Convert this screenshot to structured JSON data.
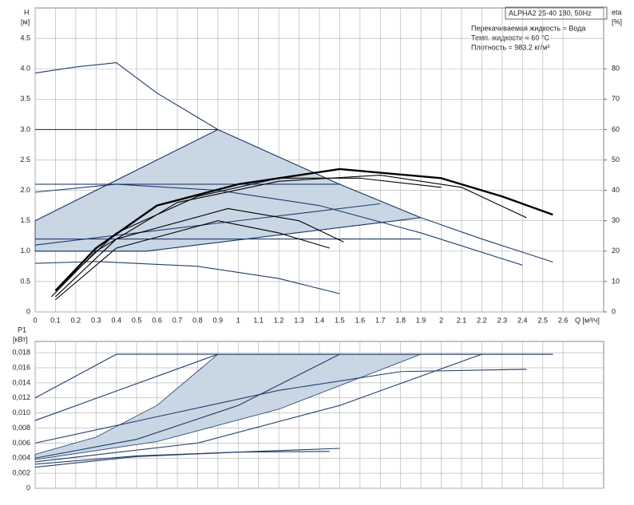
{
  "chart_data": [
    {
      "type": "line",
      "ylabel": "H",
      "yunit": "[м]",
      "y2label": "eta",
      "y2unit": "[%]",
      "xlabel": "Q [м³/ч]",
      "box_title": "ALPHA2 25-40 180, 50Hz",
      "annotations": [
        "Перекачиваемая жидкость = Вода",
        "Темп. жидкости = 60 °C",
        "Плотность = 983.2 кг/м³"
      ],
      "xlim": [
        0,
        2.8
      ],
      "xticks": [
        0,
        0.1,
        0.2,
        0.3,
        0.4,
        0.5,
        0.6,
        0.7,
        0.8,
        0.9,
        1,
        1.1,
        1.2,
        1.3,
        1.4,
        1.5,
        1.6,
        1.7,
        1.8,
        1.9,
        2,
        2.1,
        2.2,
        2.3,
        2.4,
        2.5,
        2.6
      ],
      "ylim": [
        0,
        5
      ],
      "yticks": [
        0,
        0.5,
        {
          "value": 1,
          "label": "1.0"
        },
        1.5,
        {
          "value": 2,
          "label": "2.0"
        },
        2.5,
        {
          "value": 3,
          "label": "3.0"
        },
        3.5,
        {
          "value": 4,
          "label": "4.0"
        },
        4.5
      ],
      "y2lim": [
        0,
        100
      ],
      "y2ticks": [
        0,
        10,
        20,
        30,
        40,
        50,
        60,
        70,
        80
      ],
      "grid": true,
      "series": [
        {
          "fill": "#c9d6e4",
          "color": "#1f3d6b",
          "x": [
            0,
            0,
            0.9,
            1.5,
            1.9,
            0.55
          ],
          "values": [
            1.0,
            1.5,
            3.0,
            2.1,
            1.55,
            1.0
          ]
        },
        {
          "color": "#1f3d6b",
          "x": [
            0,
            0.2,
            0.4,
            0.6,
            0.9,
            1.2,
            1.5,
            1.9,
            2.2,
            2.55
          ],
          "values": [
            3.93,
            4.03,
            4.1,
            3.6,
            3.0,
            2.55,
            2.1,
            1.55,
            1.2,
            0.82
          ]
        },
        {
          "color": "#1f3d6b",
          "x": [
            0,
            0.9
          ],
          "values": [
            1.5,
            3.0
          ]
        },
        {
          "color": "#1f3d6b",
          "x": [
            0,
            0.9
          ],
          "values": [
            3.0,
            3.0
          ]
        },
        {
          "color": "#1f3d6b",
          "x": [
            0,
            1.5
          ],
          "values": [
            2.1,
            2.1
          ]
        },
        {
          "color": "#1f3d6b",
          "x": [
            0,
            1.9
          ],
          "values": [
            1.2,
            1.2
          ]
        },
        {
          "color": "#1f3d6b",
          "x": [
            0,
            1.7
          ],
          "values": [
            1.1,
            1.78
          ]
        },
        {
          "color": "#1f3d6b",
          "x": [
            0,
            0.55,
            1.9
          ],
          "values": [
            1.0,
            1.0,
            1.55
          ]
        },
        {
          "color": "#1f3d6b",
          "x": [
            0,
            0.4,
            0.9,
            1.4,
            1.9,
            2.4
          ],
          "values": [
            1.97,
            2.1,
            2.0,
            1.75,
            1.3,
            0.77
          ]
        },
        {
          "color": "#1f3d6b",
          "x": [
            0,
            0.3,
            0.8,
            1.2,
            1.5
          ],
          "values": [
            0.8,
            0.83,
            0.75,
            0.55,
            0.3
          ]
        },
        {
          "color": "#000000",
          "style": "bold",
          "axis": "y2",
          "x": [
            0.1,
            0.3,
            0.6,
            1.0,
            1.5,
            2.0,
            2.3,
            2.55
          ],
          "values": [
            7,
            21,
            35,
            42,
            47,
            44,
            38,
            32
          ]
        },
        {
          "color": "#000000",
          "axis": "y2",
          "x": [
            0.08,
            0.3,
            0.7,
            1.2,
            1.7,
            2.1,
            2.42
          ],
          "values": [
            5,
            20,
            36,
            43,
            45,
            41,
            31
          ]
        },
        {
          "color": "#000000",
          "axis": "y2",
          "x": [
            0.1,
            0.4,
            0.8,
            1.2,
            1.6,
            2.0
          ],
          "values": [
            7,
            26,
            38,
            44,
            44,
            41
          ]
        },
        {
          "color": "#000000",
          "axis": "y2",
          "x": [
            0.1,
            0.4,
            0.95,
            1.3,
            1.52
          ],
          "values": [
            5,
            24,
            34,
            30,
            23
          ]
        },
        {
          "color": "#000000",
          "axis": "y2",
          "x": [
            0.1,
            0.4,
            0.9,
            1.2,
            1.45
          ],
          "values": [
            4,
            21,
            30,
            26,
            21
          ]
        }
      ]
    },
    {
      "type": "line",
      "ylabel": "P1",
      "yunit": "[кВт]",
      "ylim": [
        0,
        0.0195
      ],
      "yticks": [
        0,
        {
          "value": 0.002,
          "label": "0,002"
        },
        {
          "value": 0.004,
          "label": "0,004"
        },
        {
          "value": 0.006,
          "label": "0,006"
        },
        {
          "value": 0.008,
          "label": "0,008"
        },
        {
          "value": 0.01,
          "label": "0,010"
        },
        {
          "value": 0.012,
          "label": "0,012"
        },
        {
          "value": 0.014,
          "label": "0,014"
        },
        {
          "value": 0.016,
          "label": "0,016"
        },
        {
          "value": 0.018,
          "label": "0,018"
        }
      ],
      "grid": true,
      "series": [
        {
          "fill": "#c9d6e4",
          "color": "#1f3d6b",
          "x": [
            0,
            0.3,
            0.6,
            0.9,
            1.9,
            1.2,
            0.6,
            0
          ],
          "values": [
            0.0045,
            0.0068,
            0.011,
            0.0178,
            0.0178,
            0.0105,
            0.0062,
            0.0038
          ]
        },
        {
          "color": "#1f3d6b",
          "x": [
            0,
            0.4,
            2.55
          ],
          "values": [
            0.012,
            0.0178,
            0.0178
          ]
        },
        {
          "color": "#1f3d6b",
          "x": [
            0,
            0.9,
            2.55
          ],
          "values": [
            0.009,
            0.0178,
            0.0178
          ]
        },
        {
          "color": "#1f3d6b",
          "x": [
            0,
            0.5,
            1.0,
            1.5
          ],
          "values": [
            0.004,
            0.0065,
            0.011,
            0.0178
          ]
        },
        {
          "color": "#1f3d6b",
          "x": [
            0,
            0.8,
            1.5,
            2.2
          ],
          "values": [
            0.0035,
            0.006,
            0.011,
            0.0178
          ]
        },
        {
          "color": "#1f3d6b",
          "x": [
            0,
            0.6,
            1.2,
            1.8,
            2.42
          ],
          "values": [
            0.006,
            0.0095,
            0.013,
            0.0155,
            0.0158
          ]
        },
        {
          "color": "#1f3d6b",
          "x": [
            0,
            0.5,
            1.0,
            1.5
          ],
          "values": [
            0.0028,
            0.0042,
            0.0048,
            0.0053
          ]
        },
        {
          "color": "#1f3d6b",
          "x": [
            0,
            0.5,
            1.0,
            1.45
          ],
          "values": [
            0.0032,
            0.0043,
            0.0048,
            0.0049
          ]
        }
      ]
    }
  ]
}
